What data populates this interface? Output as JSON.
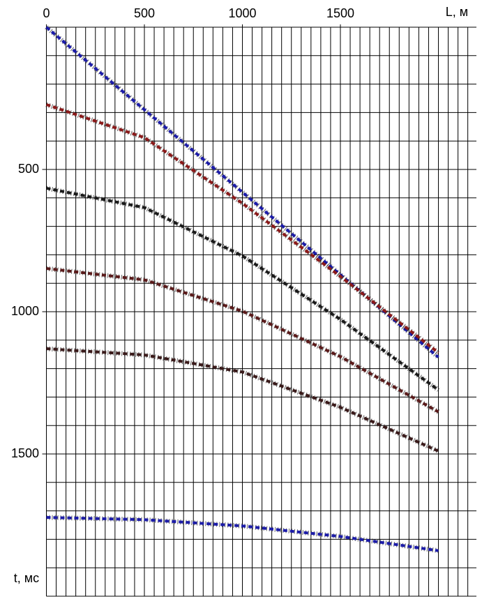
{
  "chart_data": {
    "type": "line",
    "x_axis_label": "L, м",
    "y_axis_label": "t, мс",
    "x": [
      0,
      500,
      1000,
      1500,
      2000
    ],
    "series": [
      {
        "color": "#1c1ca8",
        "values": [
          0,
          290,
          580,
          870,
          1160
        ]
      },
      {
        "color": "#8b1a1a",
        "values": [
          272,
          388,
          619,
          876,
          1144
        ]
      },
      {
        "color": "#1a1a1a",
        "values": [
          566,
          634,
          804,
          1027,
          1275
        ]
      },
      {
        "color": "#5a1a1a",
        "values": [
          848,
          888,
          998,
          1158,
          1352
        ]
      },
      {
        "color": "#3a1a1a",
        "values": [
          1130,
          1152,
          1212,
          1336,
          1490
        ]
      },
      {
        "color": "#1c1ca8",
        "values": [
          1723,
          1731,
          1753,
          1790,
          1840
        ]
      }
    ],
    "xlim": [
      0,
      2194
    ],
    "ylim": [
      0,
      2000
    ],
    "y_inverted": true,
    "xticks": [
      0,
      500,
      1000,
      1500
    ],
    "yticks": [
      500,
      1000,
      1500
    ],
    "xgrid": [
      0,
      50,
      100,
      150,
      200,
      250,
      300,
      350,
      400,
      450,
      500,
      550,
      600,
      650,
      700,
      750,
      800,
      850,
      900,
      950,
      1000,
      1050,
      1100,
      1150,
      1200,
      1250,
      1300,
      1350,
      1400,
      1450,
      1500,
      1550,
      1600,
      1650,
      1700,
      1750,
      1800,
      1850,
      1900,
      1950,
      2000,
      2050,
      2100,
      2150
    ],
    "ygrid": [
      0,
      100,
      200,
      300,
      400,
      500,
      600,
      700,
      800,
      900,
      1000,
      1100,
      1200,
      1300,
      1400,
      1500,
      1600,
      1700,
      1800,
      1900,
      2000
    ]
  }
}
